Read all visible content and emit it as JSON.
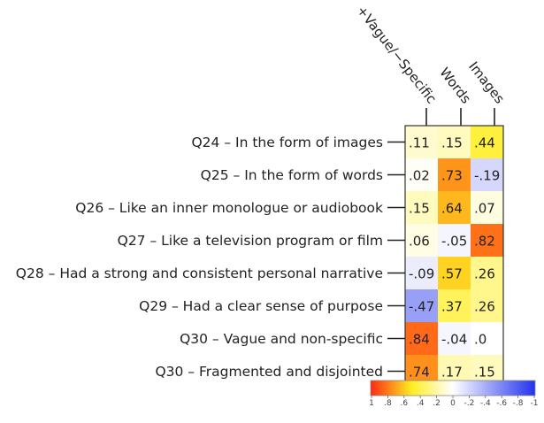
{
  "chart_data": {
    "type": "heatmap",
    "columns": [
      "+Vague/−Specific",
      "Words",
      "Images"
    ],
    "rows": [
      "Q24 – In the form of images",
      "Q25 – In the form of words",
      "Q26 – Like an inner monologue or audiobook",
      "Q27 – Like a television program or film",
      "Q28 – Had a strong and consistent personal narrative",
      "Q29 – Had a clear sense of purpose",
      "Q30 – Vague and non-specific",
      "Q30 – Fragmented and disjointed"
    ],
    "values": [
      [
        0.11,
        0.15,
        0.44
      ],
      [
        0.02,
        0.73,
        -0.19
      ],
      [
        0.15,
        0.64,
        0.07
      ],
      [
        0.06,
        -0.05,
        0.82
      ],
      [
        -0.09,
        0.57,
        0.26
      ],
      [
        -0.47,
        0.37,
        0.26
      ],
      [
        0.84,
        -0.04,
        0.0
      ],
      [
        0.74,
        0.17,
        0.15
      ]
    ],
    "cell_labels": [
      [
        ".11",
        ".15",
        ".44"
      ],
      [
        ".02",
        ".73",
        "-.19"
      ],
      [
        ".15",
        ".64",
        ".07"
      ],
      [
        ".06",
        "-.05",
        ".82"
      ],
      [
        "-.09",
        ".57",
        ".26"
      ],
      [
        "-.47",
        ".37",
        ".26"
      ],
      [
        ".84",
        "-.04",
        ".0"
      ],
      [
        ".74",
        ".17",
        ".15"
      ]
    ],
    "colorbar": {
      "range": [
        1,
        -1
      ],
      "tick_labels": [
        "1",
        ".8",
        ".6",
        ".4",
        ".2",
        "0",
        "-.2",
        "-.4",
        "-.6",
        "-.8",
        "-1"
      ],
      "colors": [
        "#ff2a12",
        "#ffee22",
        "#ffffff",
        "#2233ee"
      ]
    },
    "title": "",
    "xlabel": "",
    "ylabel": ""
  }
}
